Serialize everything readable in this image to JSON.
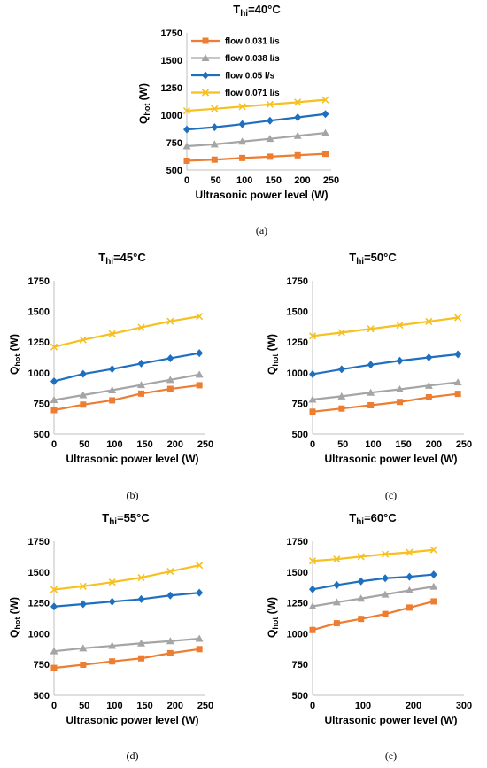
{
  "colors": {
    "flow 0.031 l/s": "#ED7D31",
    "flow 0.038 l/s": "#A5A5A5",
    "flow 0.05 l/s": "#1F6FC0",
    "flow 0.071 l/s": "#F5C020"
  },
  "markers": [
    "square",
    "triangle",
    "diamond",
    "cross"
  ],
  "chart_data": [
    {
      "type": "line",
      "title": "T_hi=40°C",
      "title_parts": [
        "T",
        "hi",
        "=40°C"
      ],
      "xlabel": "Ultrasonic power level (W)",
      "ylabel_parts": [
        "Q",
        "hot",
        " (W)"
      ],
      "caption": "(a)",
      "xlim": [
        0,
        250
      ],
      "ylim": [
        500,
        1750
      ],
      "xticks": [
        "0",
        "50",
        "100",
        "150",
        "200",
        "250"
      ],
      "yticks": [
        "500",
        "750",
        "1000",
        "1250",
        "1500",
        "1750"
      ],
      "legend": "top-left",
      "x": [
        0,
        48,
        96,
        144,
        192,
        240
      ],
      "series": [
        {
          "name": "flow 0.031 l/s",
          "values": [
            585,
            595,
            610,
            622,
            635,
            648
          ]
        },
        {
          "name": "flow 0.038 l/s",
          "values": [
            718,
            735,
            760,
            785,
            812,
            838
          ]
        },
        {
          "name": "flow 0.05 l/s",
          "values": [
            870,
            890,
            918,
            950,
            980,
            1010
          ]
        },
        {
          "name": "flow 0.071 l/s",
          "values": [
            1040,
            1058,
            1078,
            1098,
            1118,
            1140
          ]
        }
      ]
    },
    {
      "type": "line",
      "title": "T_hi=45°C",
      "title_parts": [
        "T",
        "hi",
        "=45°C"
      ],
      "xlabel": "Ultrasonic power level (W)",
      "ylabel_parts": [
        "Q",
        "hot",
        " (W)"
      ],
      "caption": "(b)",
      "xlim": [
        0,
        250
      ],
      "ylim": [
        500,
        1750
      ],
      "xticks": [
        "0",
        "50",
        "100",
        "150",
        "200",
        "250"
      ],
      "yticks": [
        "500",
        "750",
        "1000",
        "1250",
        "1500",
        "1750"
      ],
      "legend": "none",
      "x": [
        0,
        48,
        96,
        144,
        192,
        240
      ],
      "series": [
        {
          "values": [
            695,
            740,
            775,
            830,
            868,
            898
          ]
        },
        {
          "values": [
            778,
            818,
            858,
            900,
            942,
            985
          ]
        },
        {
          "values": [
            930,
            990,
            1030,
            1075,
            1118,
            1160
          ]
        },
        {
          "values": [
            1210,
            1268,
            1318,
            1370,
            1420,
            1460
          ]
        }
      ]
    },
    {
      "type": "line",
      "title": "T_hi=50°C",
      "title_parts": [
        "T",
        "hi",
        "=50°C"
      ],
      "xlabel": "Ultrasonic power level (W)",
      "ylabel_parts": [
        "Q",
        "hot",
        " (W)"
      ],
      "caption": "(c)",
      "xlim": [
        0,
        250
      ],
      "ylim": [
        500,
        1750
      ],
      "xticks": [
        "0",
        "50",
        "100",
        "150",
        "200",
        "250"
      ],
      "yticks": [
        "500",
        "750",
        "1000",
        "1250",
        "1500",
        "1750"
      ],
      "legend": "none",
      "x": [
        0,
        48,
        96,
        144,
        192,
        240
      ],
      "series": [
        {
          "values": [
            682,
            708,
            735,
            762,
            800,
            828
          ]
        },
        {
          "values": [
            782,
            808,
            838,
            865,
            895,
            922
          ]
        },
        {
          "values": [
            988,
            1028,
            1065,
            1098,
            1125,
            1150
          ]
        },
        {
          "values": [
            1300,
            1328,
            1358,
            1388,
            1418,
            1450
          ]
        }
      ]
    },
    {
      "type": "line",
      "title": "T_hi=55°C",
      "title_parts": [
        "T",
        "hi",
        "=55°C"
      ],
      "xlabel": "Ultrasonic power level (W)",
      "ylabel_parts": [
        "Q",
        "hot",
        " (W)"
      ],
      "caption": "(d)",
      "xlim": [
        0,
        250
      ],
      "ylim": [
        500,
        1750
      ],
      "xticks": [
        "0",
        "50",
        "100",
        "150",
        "200",
        "250"
      ],
      "yticks": [
        "500",
        "750",
        "1000",
        "1250",
        "1500",
        "1750"
      ],
      "legend": "none",
      "x": [
        0,
        48,
        96,
        144,
        192,
        240
      ],
      "series": [
        {
          "values": [
            722,
            748,
            775,
            800,
            842,
            875
          ]
        },
        {
          "values": [
            858,
            882,
            902,
            922,
            940,
            960
          ]
        },
        {
          "values": [
            1220,
            1240,
            1260,
            1280,
            1310,
            1332
          ]
        },
        {
          "values": [
            1358,
            1385,
            1418,
            1455,
            1505,
            1555
          ]
        }
      ]
    },
    {
      "type": "line",
      "title": "T_hi=60°C",
      "title_parts": [
        "T",
        "hi",
        "=60°C"
      ],
      "xlabel": "Ultrasonic power level (W)",
      "ylabel_parts": [
        "Q",
        "hot",
        " (W)"
      ],
      "caption": "(e)",
      "xlim": [
        0,
        300
      ],
      "ylim": [
        500,
        1750
      ],
      "xticks": [
        "0",
        "100",
        "200",
        "300"
      ],
      "yticks": [
        "500",
        "750",
        "1000",
        "1250",
        "1500",
        "1750"
      ],
      "legend": "none",
      "x": [
        0,
        48,
        96,
        144,
        192,
        240
      ],
      "series": [
        {
          "values": [
            1030,
            1085,
            1120,
            1160,
            1212,
            1262
          ]
        },
        {
          "values": [
            1222,
            1255,
            1285,
            1318,
            1352,
            1382
          ]
        },
        {
          "values": [
            1360,
            1395,
            1425,
            1450,
            1462,
            1480
          ]
        },
        {
          "values": [
            1590,
            1605,
            1625,
            1645,
            1660,
            1680
          ]
        }
      ]
    }
  ]
}
